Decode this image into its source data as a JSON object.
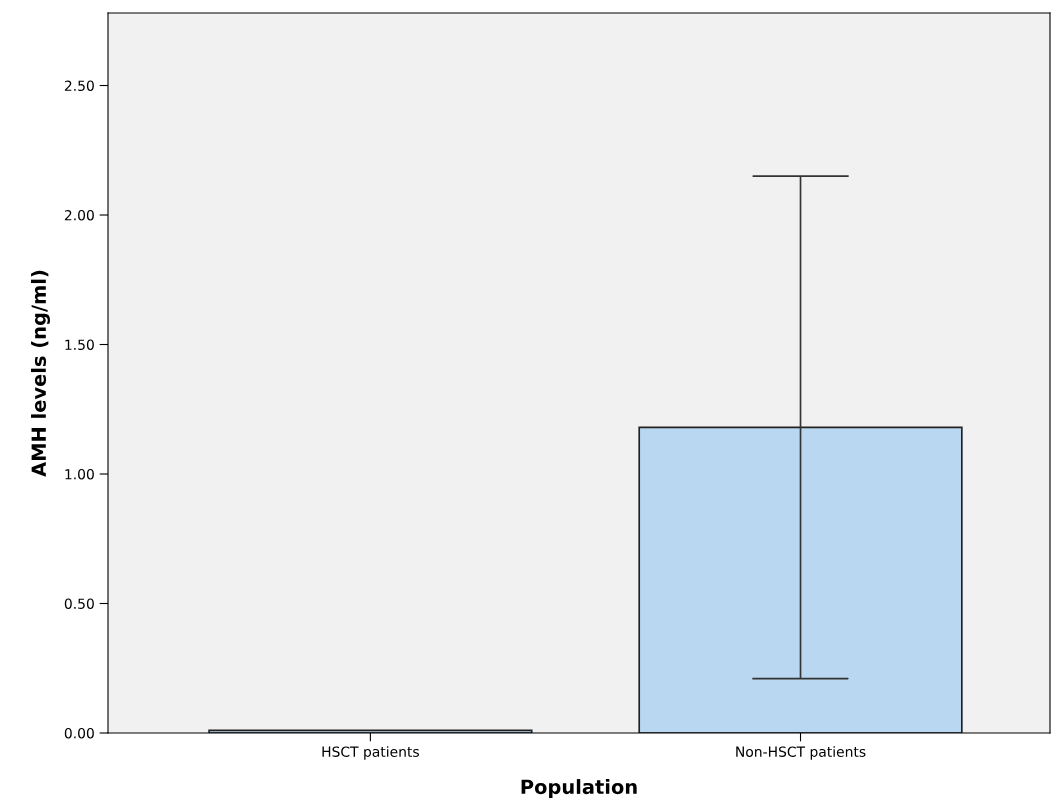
{
  "chart_data": {
    "type": "bar",
    "xlabel": "Population",
    "ylabel": "AMH levels (ng/ml)",
    "categories": [
      "HSCT patients",
      "Non-HSCT patients"
    ],
    "series": [
      {
        "color": "#b9d7f0",
        "values": [
          0.01,
          1.18
        ],
        "errors": [
          null,
          0.97
        ]
      }
    ],
    "ylim": [
      0,
      2.78
    ],
    "yticks": [
      {
        "value": 0,
        "label": "0.00"
      },
      {
        "value": 0.5,
        "label": "0.50"
      },
      {
        "value": 1.0,
        "label": "1.00"
      },
      {
        "value": 1.5,
        "label": "1.50"
      },
      {
        "value": 2.0,
        "label": "2.00"
      },
      {
        "value": 2.5,
        "label": "2.50"
      }
    ],
    "grid": false,
    "legend": false
  }
}
